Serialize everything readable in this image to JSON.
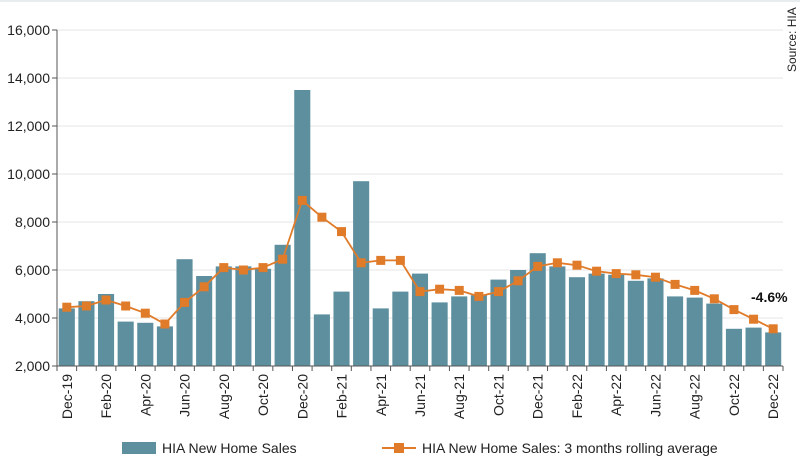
{
  "chart_data": {
    "type": "bar",
    "title": "",
    "xlabel": "",
    "ylabel": "",
    "ylim": [
      2000,
      16000
    ],
    "yticks": [
      2000,
      4000,
      6000,
      8000,
      10000,
      12000,
      14000,
      16000
    ],
    "ytick_labels": [
      "2,000",
      "4,000",
      "6,000",
      "8,000",
      "10,000",
      "12,000",
      "14,000",
      "16,000"
    ],
    "categories": [
      "Dec-19",
      "Jan-20",
      "Feb-20",
      "Mar-20",
      "Apr-20",
      "May-20",
      "Jun-20",
      "Jul-20",
      "Aug-20",
      "Sep-20",
      "Oct-20",
      "Nov-20",
      "Dec-20",
      "Jan-21",
      "Feb-21",
      "Mar-21",
      "Apr-21",
      "May-21",
      "Jun-21",
      "Jul-21",
      "Aug-21",
      "Sep-21",
      "Oct-21",
      "Nov-21",
      "Dec-21",
      "Jan-22",
      "Feb-22",
      "Mar-22",
      "Apr-22",
      "May-22",
      "Jun-22",
      "Jul-22",
      "Aug-22",
      "Sep-22",
      "Oct-22",
      "Nov-22",
      "Dec-22"
    ],
    "tick_labels": [
      "Dec-19",
      "Feb-20",
      "Apr-20",
      "Jun-20",
      "Aug-20",
      "Oct-20",
      "Dec-20",
      "Feb-21",
      "Apr-21",
      "Jun-21",
      "Aug-21",
      "Oct-21",
      "Dec-21",
      "Feb-22",
      "Apr-22",
      "Jun-22",
      "Aug-22",
      "Oct-22",
      "Dec-22"
    ],
    "series": [
      {
        "name": "HIA New Home Sales",
        "type": "bar",
        "color": "#5e8f9f",
        "values": [
          4400,
          4700,
          5000,
          3850,
          3800,
          3650,
          6450,
          5750,
          6150,
          6150,
          6050,
          7050,
          13500,
          4150,
          5100,
          9700,
          4400,
          5100,
          5850,
          4650,
          4900,
          4950,
          5600,
          6000,
          6700,
          6150,
          5700,
          5850,
          5800,
          5550,
          5650,
          4900,
          4850,
          4600,
          3550,
          3600,
          3400
        ]
      },
      {
        "name": "HIA New Home Sales: 3 months rolling average",
        "type": "line",
        "color": "#e07b2a",
        "values": [
          4450,
          4500,
          4750,
          4500,
          4200,
          3750,
          4650,
          5300,
          6100,
          6000,
          6100,
          6450,
          8900,
          8200,
          7600,
          6300,
          6400,
          6400,
          5100,
          5200,
          5150,
          4900,
          5100,
          5550,
          6150,
          6300,
          6200,
          5950,
          5850,
          5800,
          5700,
          5400,
          5150,
          4800,
          4350,
          3950,
          3550
        ]
      }
    ],
    "annotation": "-4.6%",
    "source": "Source: HIA",
    "legend_position": "bottom"
  }
}
